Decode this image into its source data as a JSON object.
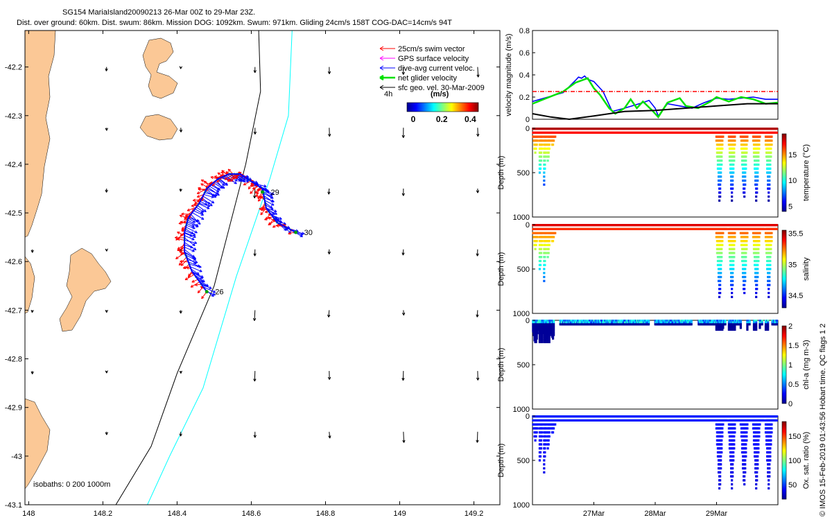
{
  "header": {
    "title": "SG154 MariaIsland20090213 26-Mar 00Z to 29-Mar 23Z.",
    "subtitle": "Dist. over ground: 60km. Dist. swum: 86km. Mission DOG: 1092km. Swum: 971km. Gliding 24cm/s 158T COG-DAC=14cm/s 94T"
  },
  "credit": "© IMOS 15-Feb-2019 01:43:56 Hobart time. QC flags 1 2",
  "colors": {
    "land": "#fbc896",
    "swim": "#ff0000",
    "gps": "#ff00ff",
    "dac": "#0000ff",
    "net": "#00e000",
    "sfc": "#000000",
    "isobath200": "#000000",
    "isobath1000": "#00ffff"
  },
  "map": {
    "legend": [
      {
        "key": "swim",
        "label": "25cm/s swim vector"
      },
      {
        "key": "gps",
        "label": "GPS surface velocity"
      },
      {
        "key": "dac",
        "label": "dive-avg current veloc."
      },
      {
        "key": "net",
        "label": "net glider velocity"
      },
      {
        "key": "sfc",
        "label": "sfc geo. vel. 30-Mar-2009"
      }
    ],
    "legend_time": "4h",
    "colorbar": {
      "label": "(m/s)",
      "ticks": [
        "0",
        "0.2",
        "0.4"
      ]
    },
    "isobaths_label": "isobaths: 0   200   1000m",
    "day_labels": [
      {
        "text": "26",
        "lon": 148.48,
        "lat": -42.662
      },
      {
        "text": "29",
        "lon": 148.63,
        "lat": -42.457
      },
      {
        "text": "30",
        "lon": 148.72,
        "lat": -42.54
      }
    ]
  },
  "chart_data": [
    {
      "type": "map",
      "xlim": [
        147.99,
        149.27
      ],
      "ylim": [
        -43.1,
        -42.125
      ],
      "xticks": [
        "148",
        "148.2",
        "148.4",
        "148.6",
        "148.8",
        "149",
        "149.2"
      ],
      "yticks": [
        "-42.2",
        "-42.3",
        "-42.4",
        "-42.5",
        "-42.6",
        "-42.7",
        "-42.8",
        "-42.9",
        "-43",
        "-43.1"
      ],
      "track": [
        [
          148.48,
          -42.662
        ],
        [
          148.44,
          -42.62
        ],
        [
          148.42,
          -42.58
        ],
        [
          148.42,
          -42.54
        ],
        [
          148.43,
          -42.51
        ],
        [
          148.46,
          -42.48
        ],
        [
          148.48,
          -42.45
        ],
        [
          148.51,
          -42.43
        ],
        [
          148.54,
          -42.42
        ],
        [
          148.57,
          -42.42
        ],
        [
          148.61,
          -42.44
        ],
        [
          148.63,
          -42.45
        ],
        [
          148.64,
          -42.49
        ],
        [
          148.67,
          -42.52
        ],
        [
          148.72,
          -42.54
        ]
      ],
      "isobath_200": [
        [
          148.62,
          -42.125
        ],
        [
          148.625,
          -42.25
        ],
        [
          148.585,
          -42.4
        ],
        [
          148.5,
          -42.65
        ],
        [
          148.4,
          -42.83
        ],
        [
          148.33,
          -42.98
        ],
        [
          148.235,
          -43.1
        ]
      ],
      "isobath_1000": [
        [
          148.71,
          -42.125
        ],
        [
          148.7,
          -42.3
        ],
        [
          148.65,
          -42.43
        ],
        [
          148.56,
          -42.63
        ],
        [
          148.47,
          -42.86
        ],
        [
          148.38,
          -43.0
        ],
        [
          148.32,
          -43.1
        ]
      ]
    },
    {
      "type": "line",
      "ylabel": "velocity magnitude (m/s)",
      "ylim": [
        0,
        0.8
      ],
      "yticks": [
        "0",
        "0.2",
        "0.4",
        "0.6",
        "0.8"
      ],
      "xlim": [
        0,
        4
      ],
      "series": [
        {
          "key": "dac",
          "x": [
            0,
            0.5,
            0.7,
            0.75,
            0.8,
            0.85,
            0.9,
            1.0,
            1.15,
            1.3,
            1.5,
            1.8,
            1.9,
            2.0,
            2.05,
            2.2,
            2.4,
            2.6,
            2.8,
            3.0,
            3.2,
            3.4,
            3.6,
            3.8,
            4.0
          ],
          "y": [
            0.16,
            0.24,
            0.35,
            0.38,
            0.37,
            0.39,
            0.36,
            0.34,
            0.25,
            0.07,
            0.1,
            0.15,
            0.17,
            0.1,
            0.03,
            0.14,
            0.12,
            0.1,
            0.15,
            0.19,
            0.18,
            0.19,
            0.2,
            0.18,
            0.18
          ]
        },
        {
          "key": "net",
          "x": [
            0,
            0.5,
            0.7,
            0.9,
            1.0,
            1.1,
            1.25,
            1.35,
            1.5,
            1.6,
            1.7,
            1.8,
            1.95,
            2.05,
            2.2,
            2.4,
            2.5,
            2.7,
            2.9,
            3.0,
            3.2,
            3.4,
            3.6,
            3.8,
            4.0
          ],
          "y": [
            0.14,
            0.25,
            0.33,
            0.37,
            0.28,
            0.22,
            0.1,
            0.05,
            0.1,
            0.18,
            0.1,
            0.16,
            0.08,
            0.02,
            0.15,
            0.19,
            0.12,
            0.1,
            0.16,
            0.2,
            0.16,
            0.2,
            0.18,
            0.14,
            0.15
          ]
        },
        {
          "key": "sfc",
          "x": [
            0,
            0.3,
            0.6,
            1.0,
            1.5,
            2.0,
            2.5,
            3.0,
            3.5,
            4.0
          ],
          "y": [
            0.05,
            0.02,
            0.0,
            0.03,
            0.07,
            0.08,
            0.1,
            0.12,
            0.14,
            0.14
          ]
        },
        {
          "key": "ref",
          "x": [
            0,
            4
          ],
          "y": [
            0.25,
            0.25
          ]
        }
      ]
    },
    {
      "type": "scatter",
      "variable": "temperature",
      "clabel": "temperature (°C)",
      "ylabel": "Depth (m)",
      "ylim": [
        0,
        1000
      ],
      "yticks": [
        "0",
        "500",
        "1000"
      ],
      "clim": [
        4,
        19
      ],
      "cticks": [
        "5",
        "10",
        "15"
      ],
      "cvals": [
        5,
        10,
        15
      ],
      "surface": 18.5,
      "deep": 4.5
    },
    {
      "type": "scatter",
      "variable": "salinity",
      "clabel": "salinity",
      "ylabel": "Depth (m)",
      "ylim": [
        0,
        1000
      ],
      "yticks": [
        "0",
        "500",
        "1000"
      ],
      "clim": [
        34.3,
        35.55
      ],
      "cticks": [
        "34.5",
        "35",
        "35.5"
      ],
      "cvals": [
        34.5,
        35,
        35.5
      ],
      "surface": 35.45,
      "deep": 34.4
    },
    {
      "type": "scatter",
      "variable": "chl",
      "clabel": "chl-a (mg m-3)",
      "ylabel": "Depth (m)",
      "ylim": [
        0,
        1000
      ],
      "yticks": [
        "0",
        "500",
        "1000"
      ],
      "clim": [
        0,
        2
      ],
      "cticks": [
        "0",
        "0.5",
        "1",
        "1.5",
        "2"
      ],
      "cvals": [
        0,
        0.5,
        1,
        1.5,
        2
      ],
      "surface": 0.8,
      "deep": 0.05
    },
    {
      "type": "scatter",
      "variable": "oxygen",
      "clabel": "Ox. sat. ratio (%)",
      "ylabel": "Depth (m)",
      "ylim": [
        0,
        1000
      ],
      "yticks": [
        "0",
        "500",
        "1000"
      ],
      "clim": [
        20,
        180
      ],
      "cticks": [
        "50",
        "100",
        "150"
      ],
      "cvals": [
        50,
        100,
        150
      ],
      "surface": 45,
      "deep": 35,
      "xticks": [
        "27Mar",
        "28Mar",
        "29Mar"
      ],
      "xtick_pos": [
        1,
        2,
        3
      ]
    }
  ],
  "profiles": {
    "xlim": [
      0,
      4
    ],
    "dives": [
      {
        "x": 0.05,
        "depth": 300
      },
      {
        "x": 0.12,
        "depth": 560
      },
      {
        "x": 0.18,
        "depth": 760
      },
      {
        "x": 0.25,
        "depth": 400
      },
      {
        "x": 0.33,
        "depth": 220
      },
      {
        "x": 3.05,
        "depth": 900
      },
      {
        "x": 3.25,
        "depth": 860
      },
      {
        "x": 3.45,
        "depth": 870
      },
      {
        "x": 3.65,
        "depth": 880
      },
      {
        "x": 3.85,
        "depth": 850
      }
    ],
    "plateau": [
      0.35,
      2.95
    ]
  }
}
